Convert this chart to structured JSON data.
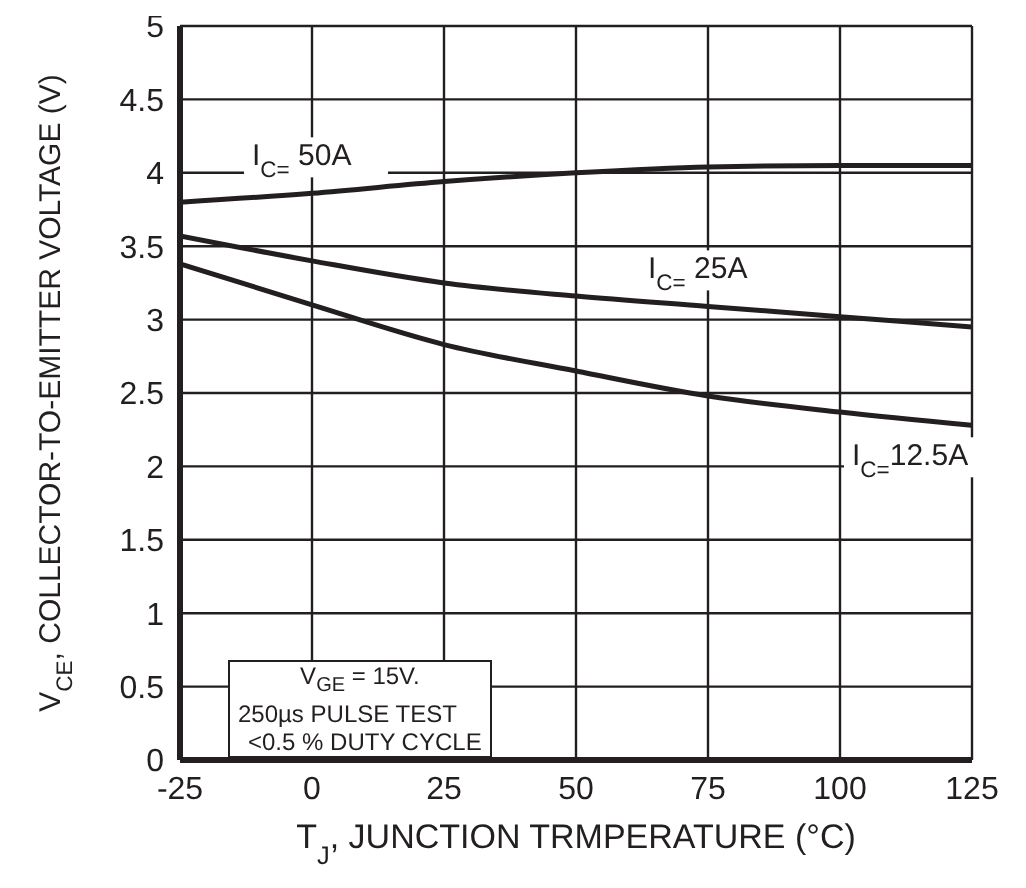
{
  "chart_data": {
    "type": "line",
    "xlabel": "T$_{J}$, JUNCTION  TRMPERATURE (°C)",
    "ylabel": "V$_{CE}$, COLLECTOR-TO-EMITTER VOLTAGE (V)",
    "x": [
      -25,
      0,
      25,
      50,
      75,
      100,
      125
    ],
    "series": [
      {
        "name": "I$_{C=}$ 50A",
        "color": "#231f20",
        "values": [
          3.8,
          3.86,
          3.94,
          4.0,
          4.04,
          4.05,
          4.05
        ]
      },
      {
        "name": "I$_{C=}$ 25A",
        "color": "#231f20",
        "values": [
          3.57,
          3.4,
          3.25,
          3.16,
          3.09,
          3.02,
          2.95
        ]
      },
      {
        "name": "I$_{C=}$12.5A",
        "color": "#231f20",
        "values": [
          3.38,
          3.1,
          2.83,
          2.65,
          2.48,
          2.37,
          2.28
        ]
      }
    ],
    "xlim": [
      -25,
      125
    ],
    "xticks": [
      -25,
      0,
      25,
      50,
      75,
      100,
      125
    ],
    "ylim": [
      0,
      5
    ],
    "yticks": [
      0,
      0.5,
      1,
      1.5,
      2,
      2.5,
      3,
      3.5,
      4,
      4.5,
      5
    ],
    "grid": true,
    "marker": "none",
    "line_style": "solid",
    "annotations": [
      "V$_{GE}$ = 15V.",
      "250µs PULSE TEST",
      "<0.5 % DUTY CYCLE"
    ]
  }
}
